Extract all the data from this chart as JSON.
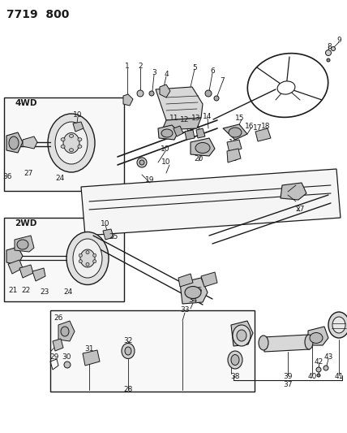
{
  "title": "7719  800",
  "bg_color": "#ffffff",
  "line_color": "#1a1a1a",
  "title_fontsize": 10,
  "label_fontsize": 6.5,
  "fig_width": 4.28,
  "fig_height": 5.33,
  "dpi": 100
}
